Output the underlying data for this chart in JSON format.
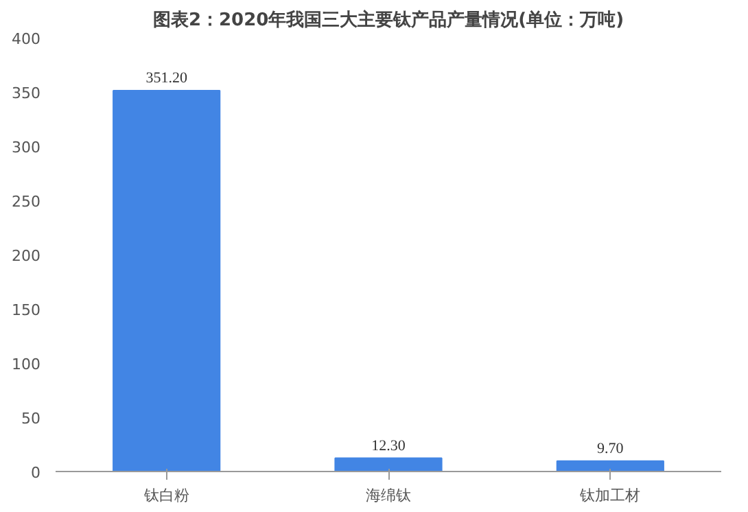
{
  "chart_data": {
    "type": "bar",
    "title": "图表2：2020年我国三大主要钛产品产量情况(单位：万吨)",
    "categories": [
      "钛白粉",
      "海绵钛",
      "钛加工材"
    ],
    "values": [
      351.2,
      12.3,
      9.7
    ],
    "value_labels": [
      "351.20",
      "12.30",
      "9.70"
    ],
    "color": "#4285e4",
    "ylim": [
      0,
      400
    ],
    "yticks": [
      0,
      50,
      100,
      150,
      200,
      250,
      300,
      350,
      400
    ],
    "grid": false
  }
}
